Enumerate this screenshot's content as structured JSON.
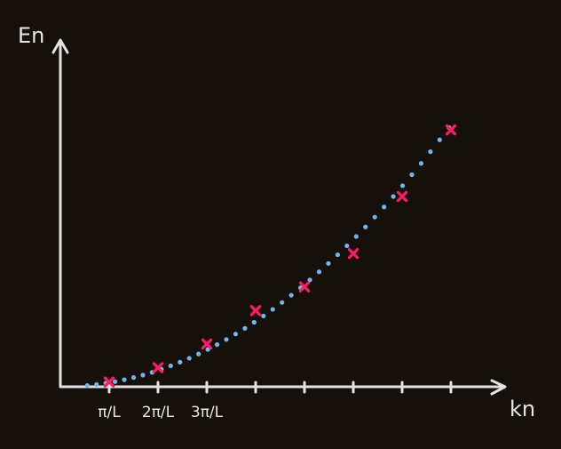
{
  "chart_data": {
    "type": "scatter",
    "xlabel": "kn",
    "ylabel": "En",
    "x_tick_labels": [
      "π/L",
      "2π/L",
      "3π/L",
      "",
      "",
      "",
      "",
      ""
    ],
    "series": [
      {
        "marker": "x",
        "color": "#ff1a66",
        "x": [
          1,
          2,
          3,
          4,
          5,
          6,
          7,
          8
        ],
        "y": [
          1,
          4,
          9,
          16,
          21,
          28,
          40,
          54
        ]
      }
    ],
    "curve": {
      "style": "dotted",
      "color": "#6fb6ef",
      "form": "parabola",
      "coefficient": 0.86
    },
    "xlim": [
      0,
      9.1
    ],
    "ylim": [
      0,
      71
    ],
    "grid": false
  }
}
